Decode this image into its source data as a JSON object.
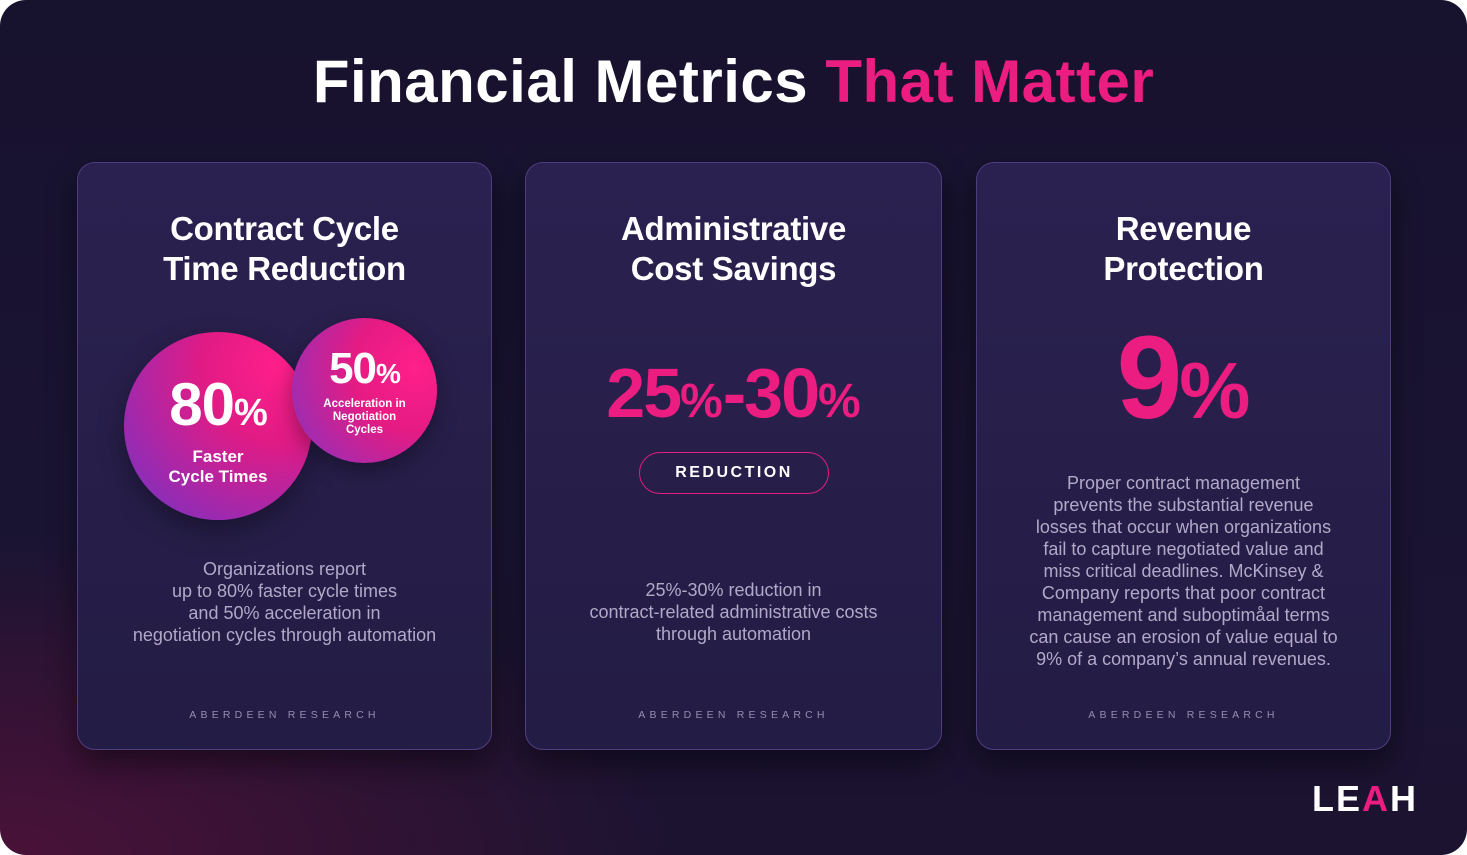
{
  "title": {
    "main": "Financial Metrics",
    "accent": "That Matter"
  },
  "cards": [
    {
      "title_line1": "Contract Cycle",
      "title_line2": "Time Reduction",
      "big_bubble": {
        "value": "80",
        "unit": "%",
        "label_line1": "Faster",
        "label_line2": "Cycle Times"
      },
      "small_bubble": {
        "value": "50",
        "unit": "%",
        "label_line1": "Acceleration in",
        "label_line2": "Negotiation",
        "label_line3": "Cycles"
      },
      "desc_lines": [
        "Organizations report",
        "up to 80% faster cycle times",
        "and 50% acceleration in",
        "negotiation cycles through automation"
      ],
      "source": "ABERDEEN RESEARCH"
    },
    {
      "title_line1": "Administrative",
      "title_line2": "Cost Savings",
      "range": {
        "low": "25",
        "high": "30",
        "unit": "%",
        "separator": "-"
      },
      "pill": "REDUCTION",
      "desc_lines": [
        "25%-30% reduction in",
        "contract-related administrative costs",
        "through automation"
      ],
      "source": "ABERDEEN RESEARCH"
    },
    {
      "title_line1": "Revenue",
      "title_line2": "Protection",
      "value": "9",
      "unit": "%",
      "desc_lines": [
        "Proper contract management",
        "prevents the substantial revenue",
        "losses that occur when organizations",
        "fail to capture negotiated value and",
        "miss critical deadlines. McKinsey &",
        "Company reports that poor contract",
        "management and suboptimåal terms",
        "can cause an erosion of value equal to",
        "9% of a company’s annual revenues."
      ],
      "source": "ABERDEEN RESEARCH"
    }
  ],
  "logo": {
    "part1": "LE",
    "accent": "A",
    "part2": "H"
  },
  "colors": {
    "accent": "#ec1d80",
    "background": "#1a1433",
    "card": "#2b2150",
    "text_muted": "#b2a9c8"
  }
}
